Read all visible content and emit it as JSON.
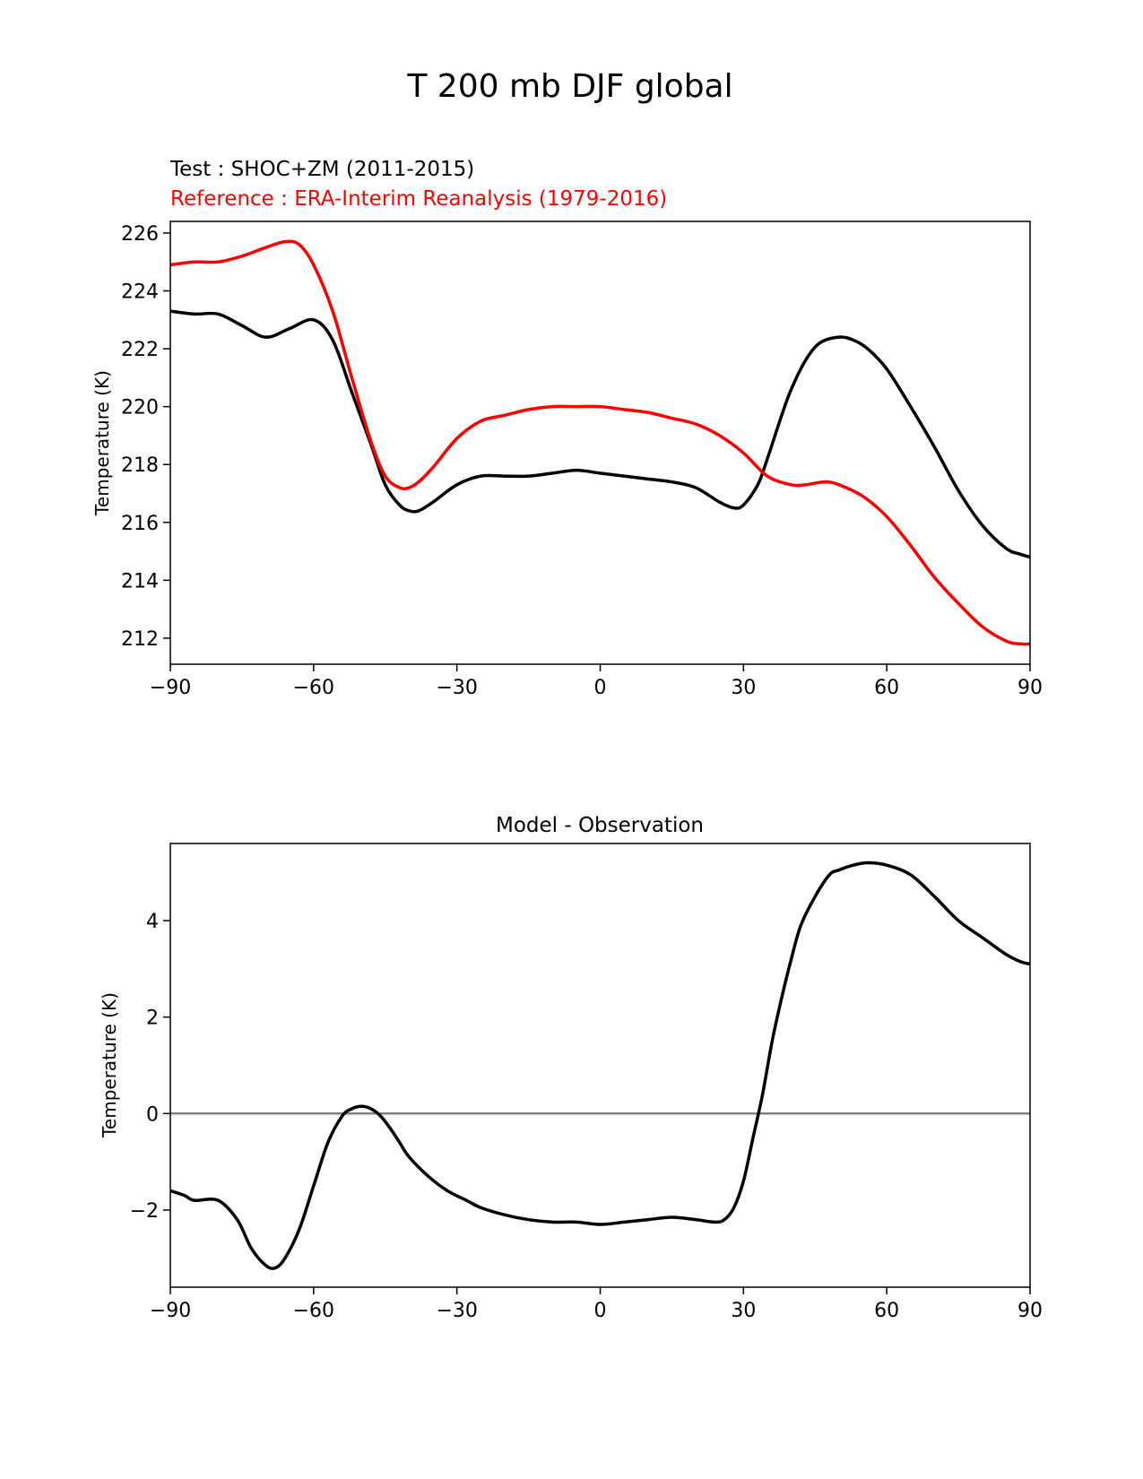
{
  "figure_title": "T 200 mb DJF global",
  "chart_data": [
    {
      "type": "line",
      "test_label": "Test : SHOC+ZM (2011-2015)",
      "reference_label": "Reference : ERA-Interim Reanalysis (1979-2016)",
      "xlabel": "",
      "ylabel": "Temperature (K)",
      "xlim": [
        -90,
        90
      ],
      "ylim": [
        211.1,
        226.4
      ],
      "xticks": [
        -90,
        -60,
        -30,
        0,
        30,
        60,
        90
      ],
      "xtick_labels": [
        "−90",
        "−60",
        "−30",
        "0",
        "30",
        "60",
        "90"
      ],
      "yticks": [
        212,
        214,
        216,
        218,
        220,
        222,
        224,
        226
      ],
      "ytick_labels": [
        "212",
        "214",
        "216",
        "218",
        "220",
        "222",
        "224",
        "226"
      ],
      "series": [
        {
          "name": "Test : SHOC+ZM (2011-2015)",
          "color": "#000000",
          "x": [
            -90,
            -85,
            -80,
            -75,
            -70,
            -65,
            -60,
            -56,
            -52,
            -48,
            -45,
            -42,
            -40,
            -38,
            -35,
            -30,
            -25,
            -20,
            -15,
            -10,
            -5,
            0,
            5,
            10,
            15,
            20,
            25,
            28,
            30,
            33,
            35,
            38,
            40,
            43,
            46,
            50,
            53,
            56,
            60,
            65,
            70,
            75,
            80,
            85,
            88,
            90
          ],
          "y": [
            223.3,
            223.2,
            223.2,
            222.8,
            222.4,
            222.7,
            223.0,
            222.3,
            220.5,
            218.7,
            217.3,
            216.6,
            216.4,
            216.4,
            216.7,
            217.3,
            217.6,
            217.6,
            217.6,
            217.7,
            217.8,
            217.7,
            217.6,
            217.5,
            217.4,
            217.2,
            216.7,
            216.5,
            216.6,
            217.3,
            218.2,
            219.7,
            220.6,
            221.6,
            222.2,
            222.4,
            222.3,
            222.0,
            221.3,
            220.0,
            218.6,
            217.1,
            215.9,
            215.1,
            214.9,
            214.8
          ]
        },
        {
          "name": "Reference : ERA-Interim Reanalysis (1979-2016)",
          "color": "#ff0000",
          "x": [
            -90,
            -85,
            -80,
            -75,
            -70,
            -66,
            -63,
            -60,
            -56,
            -52,
            -48,
            -45,
            -42,
            -40,
            -38,
            -35,
            -30,
            -25,
            -20,
            -15,
            -10,
            -5,
            0,
            5,
            10,
            15,
            20,
            25,
            30,
            35,
            40,
            43,
            47,
            50,
            55,
            60,
            65,
            70,
            75,
            80,
            85,
            88,
            90
          ],
          "y": [
            224.9,
            225.0,
            225.0,
            225.2,
            225.5,
            225.7,
            225.6,
            224.9,
            223.3,
            221.0,
            218.8,
            217.6,
            217.2,
            217.2,
            217.4,
            217.9,
            218.9,
            219.5,
            219.7,
            219.9,
            220.0,
            220.0,
            220.0,
            219.9,
            219.8,
            219.6,
            219.4,
            219.0,
            218.4,
            217.6,
            217.3,
            217.3,
            217.4,
            217.3,
            216.9,
            216.2,
            215.2,
            214.1,
            213.2,
            212.4,
            211.9,
            211.8,
            211.8
          ]
        }
      ]
    },
    {
      "type": "line",
      "title": "Model - Observation",
      "xlabel": "",
      "ylabel": "Temperature (K)",
      "xlim": [
        -90,
        90
      ],
      "ylim": [
        -3.6,
        5.6
      ],
      "xticks": [
        -90,
        -60,
        -30,
        0,
        30,
        60,
        90
      ],
      "xtick_labels": [
        "−90",
        "−60",
        "−30",
        "0",
        "30",
        "60",
        "90"
      ],
      "yticks": [
        -2,
        0,
        2,
        4
      ],
      "ytick_labels": [
        "−2",
        "0",
        "2",
        "4"
      ],
      "zero_line_color": "#808080",
      "series": [
        {
          "name": "Model - Observation",
          "color": "#000000",
          "x": [
            -90,
            -87,
            -85,
            -80,
            -76,
            -73,
            -70,
            -68,
            -66,
            -63,
            -60,
            -57,
            -54,
            -52,
            -50,
            -48,
            -46,
            -44,
            -42,
            -40,
            -36,
            -32,
            -28,
            -25,
            -20,
            -15,
            -10,
            -5,
            0,
            5,
            10,
            15,
            20,
            24,
            26,
            28,
            30,
            32,
            34,
            36,
            38,
            40,
            42,
            45,
            48,
            50,
            53,
            56,
            60,
            65,
            70,
            75,
            80,
            85,
            88,
            90
          ],
          "y": [
            -1.6,
            -1.7,
            -1.8,
            -1.8,
            -2.2,
            -2.8,
            -3.15,
            -3.2,
            -3.0,
            -2.4,
            -1.5,
            -0.6,
            -0.05,
            0.1,
            0.15,
            0.1,
            -0.05,
            -0.3,
            -0.6,
            -0.9,
            -1.3,
            -1.6,
            -1.8,
            -1.95,
            -2.1,
            -2.2,
            -2.25,
            -2.25,
            -2.3,
            -2.25,
            -2.2,
            -2.15,
            -2.2,
            -2.25,
            -2.2,
            -1.95,
            -1.4,
            -0.5,
            0.4,
            1.5,
            2.4,
            3.2,
            3.9,
            4.5,
            4.95,
            5.05,
            5.15,
            5.2,
            5.15,
            4.95,
            4.5,
            4.0,
            3.65,
            3.3,
            3.15,
            3.1
          ]
        }
      ]
    }
  ]
}
